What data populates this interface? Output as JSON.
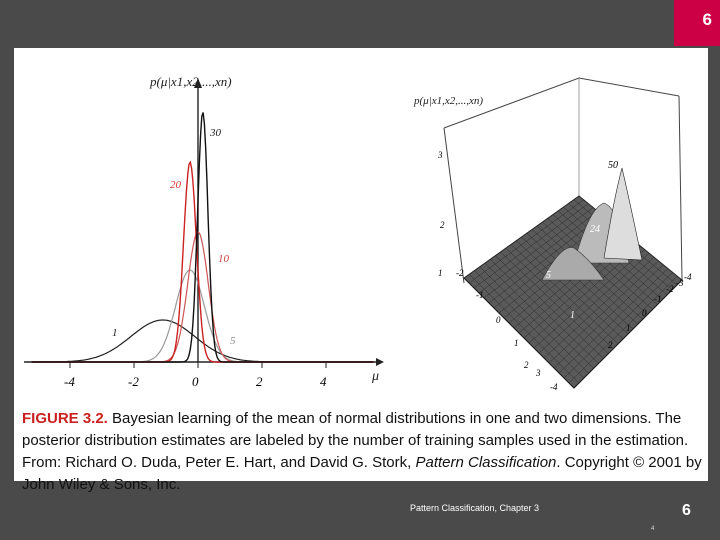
{
  "slide_number": "6",
  "footer_text": "Pattern Classification, Chapter 3",
  "page_number_small": "4",
  "caption": {
    "label": "FIGURE 3.2.",
    "text_before_italic": " Bayesian learning of the mean of normal distributions in one and two dimensions. The posterior distribution estimates are labeled by the number of training samples used in the estimation. From: Richard O. Duda, Peter E. Hart, and David G. Stork, ",
    "italic_title": "Pattern Classification",
    "text_after_italic": ". Copyright © 2001 by John Wiley & Sons, Inc."
  },
  "left_plot": {
    "ylabel": "p(μ|x1,x2,...,xn)",
    "xlabel": "μ",
    "x_ticks": [
      "-4",
      "-2",
      "0",
      "2",
      "4"
    ],
    "curve_labels": [
      {
        "text": "1",
        "color": "#222222"
      },
      {
        "text": "5",
        "color": "#888888"
      },
      {
        "text": "10",
        "color": "#cc4444"
      },
      {
        "text": "20",
        "color": "#dd3333"
      },
      {
        "text": "30",
        "color": "#222222"
      }
    ],
    "colors": {
      "n1": "#222222",
      "n5": "#999999",
      "n10": "#cc5555",
      "n20": "#cc2222",
      "n30": "#111111"
    }
  },
  "right_plot": {
    "zlabel": "p(μ|x1,x2,...,xn)",
    "z_ticks": [
      "1",
      "2",
      "3"
    ],
    "axis_ticks_left": [
      "-2",
      "-1",
      "0",
      "1",
      "2",
      "3",
      "-4"
    ],
    "axis_ticks_right": [
      "2",
      "1",
      "0",
      "-1",
      "-2",
      "-3",
      "-4"
    ],
    "peak_labels": [
      "50",
      "24",
      "5",
      "1"
    ]
  },
  "colors": {
    "badge": "#cc0044",
    "background": "#4a4a4a",
    "caption_label": "#cc2020"
  }
}
